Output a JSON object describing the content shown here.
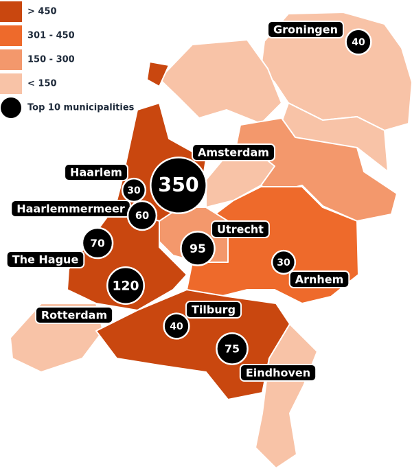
{
  "legend": {
    "items": [
      {
        "label": "> 450",
        "color": "#c9470f"
      },
      {
        "label": "301 - 450",
        "color": "#ee6a2b"
      },
      {
        "label": "150 - 300",
        "color": "#f3986c"
      },
      {
        "label": "< 150",
        "color": "#f8c3a7"
      },
      {
        "label": "Top 10 municipalities",
        "color": "#000000"
      }
    ]
  },
  "cities": [
    {
      "name": "Groningen",
      "value": 40
    },
    {
      "name": "Amsterdam",
      "value": 350
    },
    {
      "name": "Haarlem",
      "value": 30
    },
    {
      "name": "Haarlemmermeer",
      "value": 60
    },
    {
      "name": "The Hague",
      "value": 70
    },
    {
      "name": "Utrecht",
      "value": 95
    },
    {
      "name": "Rotterdam",
      "value": 120
    },
    {
      "name": "Tilburg",
      "value": 40
    },
    {
      "name": "Arnhem",
      "value": 30
    },
    {
      "name": "Eindhoven",
      "value": 75
    }
  ]
}
